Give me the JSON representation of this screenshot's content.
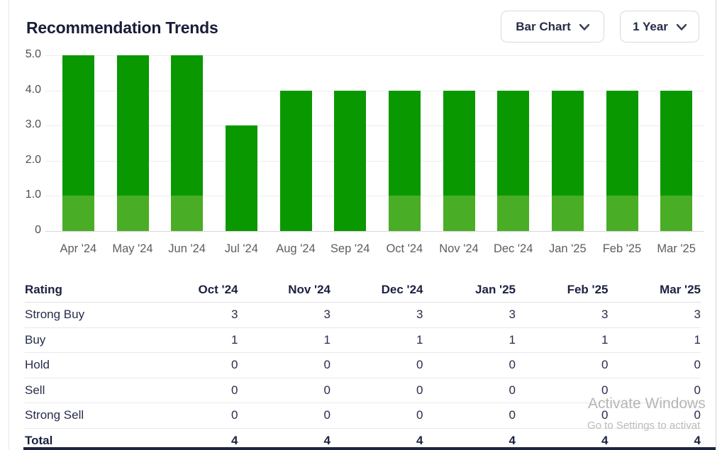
{
  "header": {
    "title": "Recommendation Trends",
    "chart_type_dropdown": {
      "value": "Bar Chart"
    },
    "range_dropdown": {
      "value": "1 Year"
    }
  },
  "chart_data": {
    "type": "bar",
    "stacked": true,
    "title": "Recommendation Trends",
    "categories": [
      "Apr '24",
      "May '24",
      "Jun '24",
      "Jul '24",
      "Aug '24",
      "Sep '24",
      "Oct '24",
      "Nov '24",
      "Dec '24",
      "Jan '25",
      "Feb '25",
      "Mar '25"
    ],
    "series": [
      {
        "name": "Buy",
        "color": "#4aad26",
        "values": [
          1,
          1,
          1,
          0,
          0,
          0,
          1,
          1,
          1,
          1,
          1,
          1
        ]
      },
      {
        "name": "Strong Buy",
        "color": "#0a9800",
        "values": [
          4,
          4,
          4,
          3,
          4,
          4,
          3,
          3,
          3,
          3,
          3,
          3
        ]
      }
    ],
    "totals": [
      5,
      5,
      5,
      3,
      4,
      4,
      4,
      4,
      4,
      4,
      4,
      4
    ],
    "y_ticks": [
      {
        "label": "0",
        "value": 0
      },
      {
        "label": "1.0",
        "value": 1
      },
      {
        "label": "2.0",
        "value": 2
      },
      {
        "label": "3.0",
        "value": 3
      },
      {
        "label": "4.0",
        "value": 4
      },
      {
        "label": "5.0",
        "value": 5
      }
    ],
    "ylim": [
      0,
      5
    ],
    "grid": true,
    "legend_position": "none",
    "xlabel": "",
    "ylabel": ""
  },
  "table": {
    "headers": [
      "Rating",
      "Oct '24",
      "Nov '24",
      "Dec '24",
      "Jan '25",
      "Feb '25",
      "Mar '25"
    ],
    "rows": [
      {
        "label": "Strong Buy",
        "values": [
          "3",
          "3",
          "3",
          "3",
          "3",
          "3"
        ],
        "bold": false
      },
      {
        "label": "Buy",
        "values": [
          "1",
          "1",
          "1",
          "1",
          "1",
          "1"
        ],
        "bold": false
      },
      {
        "label": "Hold",
        "values": [
          "0",
          "0",
          "0",
          "0",
          "0",
          "0"
        ],
        "bold": false
      },
      {
        "label": "Sell",
        "values": [
          "0",
          "0",
          "0",
          "0",
          "0",
          "0"
        ],
        "bold": false
      },
      {
        "label": "Strong Sell",
        "values": [
          "0",
          "0",
          "0",
          "0",
          "0",
          "0"
        ],
        "bold": false
      },
      {
        "label": "Total",
        "values": [
          "4",
          "4",
          "4",
          "4",
          "4",
          "4"
        ],
        "bold": true
      }
    ]
  },
  "watermark": {
    "line1": "Activate Windows",
    "line2": "Go to Settings to activat"
  },
  "colors": {
    "strong_buy": "#0a9800",
    "buy": "#4aad26",
    "dark_text": "#1b2140",
    "axis_text": "#5d5d5d"
  }
}
